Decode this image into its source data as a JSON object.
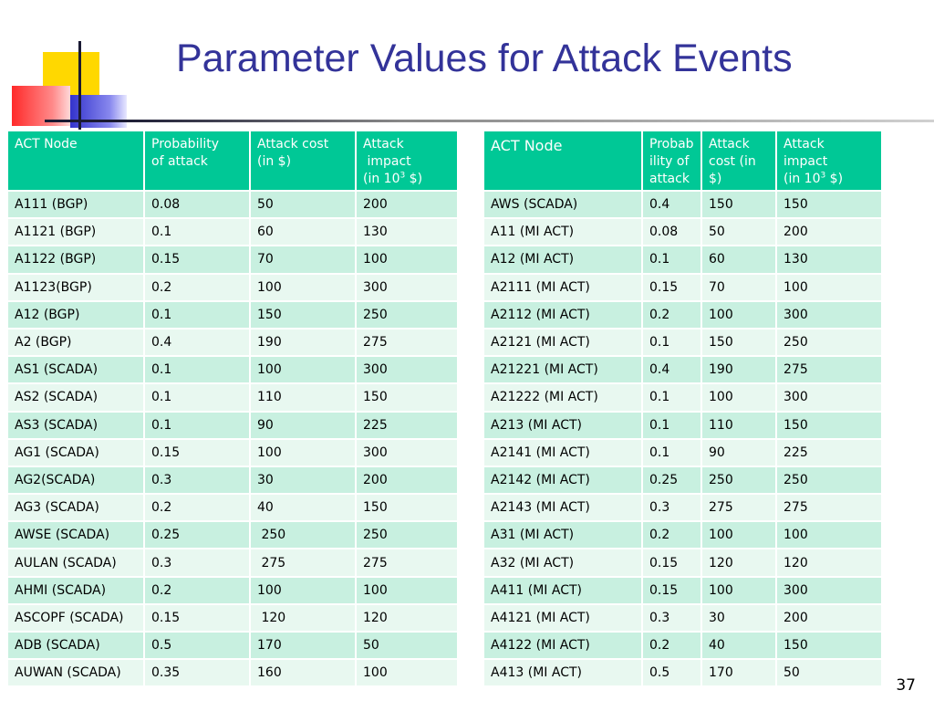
{
  "slide": {
    "title": "Parameter Values for Attack Events",
    "page_number": "37"
  },
  "colors": {
    "title": "#333399",
    "header_bg": "#00c896",
    "row_odd_bg": "#c8f0e0",
    "row_even_bg": "#e8f8f0"
  },
  "left_table": {
    "headers": {
      "node": "ACT Node",
      "prob_1": "Probability",
      "prob_2": "of attack",
      "cost_1": "Attack cost",
      "cost_2": "(in $)",
      "impact_1": "Attack",
      "impact_2": " impact",
      "impact_3_pre": "(in 10",
      "impact_3_sup": "3",
      "impact_3_post": " $)"
    },
    "rows": [
      [
        "A111 (BGP)",
        "0.08",
        "50",
        "200"
      ],
      [
        "A1121 (BGP)",
        "0.1",
        "60",
        "130"
      ],
      [
        "A1122 (BGP)",
        "0.15",
        "70",
        "100"
      ],
      [
        "A1123(BGP)",
        "0.2",
        "100",
        "300"
      ],
      [
        "A12 (BGP)",
        "0.1",
        "150",
        "250"
      ],
      [
        "A2 (BGP)",
        "0.4",
        "190",
        "275"
      ],
      [
        "AS1 (SCADA)",
        "0.1",
        "100",
        "300"
      ],
      [
        "AS2 (SCADA)",
        "0.1",
        "110",
        "150"
      ],
      [
        "AS3 (SCADA)",
        "0.1",
        "90",
        "225"
      ],
      [
        "AG1 (SCADA)",
        "0.15",
        "100",
        "300"
      ],
      [
        "AG2(SCADA)",
        "0.3",
        "30",
        "200"
      ],
      [
        "AG3 (SCADA)",
        "0.2",
        "40",
        "150"
      ],
      [
        "AWSE (SCADA)",
        "0.25",
        " 250",
        "250"
      ],
      [
        "AULAN (SCADA)",
        "0.3",
        " 275",
        "275"
      ],
      [
        "AHMI (SCADA)",
        "0.2",
        "100",
        "100"
      ],
      [
        "ASCOPF (SCADA)",
        "0.15",
        " 120",
        "120"
      ],
      [
        "ADB (SCADA)",
        "0.5",
        "170",
        "50"
      ],
      [
        "AUWAN (SCADA)",
        "0.35",
        "160",
        "100"
      ]
    ]
  },
  "right_table": {
    "headers": {
      "node": "ACT Node",
      "prob_1": "Probab",
      "prob_2": "ility of",
      "prob_3": "attack",
      "cost_1": "Attack",
      "cost_2": "cost (in",
      "cost_3": "$)",
      "impact_1": "Attack",
      "impact_2": "impact",
      "impact_3_pre": "(in 10",
      "impact_3_sup": "3",
      "impact_3_post": " $)"
    },
    "rows": [
      [
        "AWS (SCADA)",
        "0.4",
        "150",
        "150"
      ],
      [
        "A11 (MI ACT)",
        "0.08",
        "50",
        "200"
      ],
      [
        "A12 (MI ACT)",
        "0.1",
        "60",
        "130"
      ],
      [
        "A2111 (MI ACT)",
        "0.15",
        "70",
        "100"
      ],
      [
        "A2112 (MI ACT)",
        "0.2",
        "100",
        "300"
      ],
      [
        "A2121 (MI ACT)",
        "0.1",
        "150",
        "250"
      ],
      [
        "A21221 (MI ACT)",
        "0.4",
        "190",
        "275"
      ],
      [
        "A21222 (MI ACT)",
        "0.1",
        "100",
        "300"
      ],
      [
        "A213 (MI ACT)",
        "0.1",
        "110",
        "150"
      ],
      [
        "A2141 (MI ACT)",
        "0.1",
        "90",
        "225"
      ],
      [
        "A2142 (MI ACT)",
        "0.25",
        "250",
        "250"
      ],
      [
        "A2143 (MI ACT)",
        "0.3",
        "275",
        "275"
      ],
      [
        "A31 (MI ACT)",
        "0.2",
        "100",
        "100"
      ],
      [
        "A32 (MI ACT)",
        "0.15",
        "120",
        "120"
      ],
      [
        "A411 (MI ACT)",
        "0.15",
        "100",
        "300"
      ],
      [
        "A4121 (MI ACT)",
        "0.3",
        "30",
        "200"
      ],
      [
        "A4122 (MI ACT)",
        "0.2",
        "40",
        "150"
      ],
      [
        "A413 (MI ACT)",
        "0.5",
        "170",
        "50"
      ]
    ]
  }
}
